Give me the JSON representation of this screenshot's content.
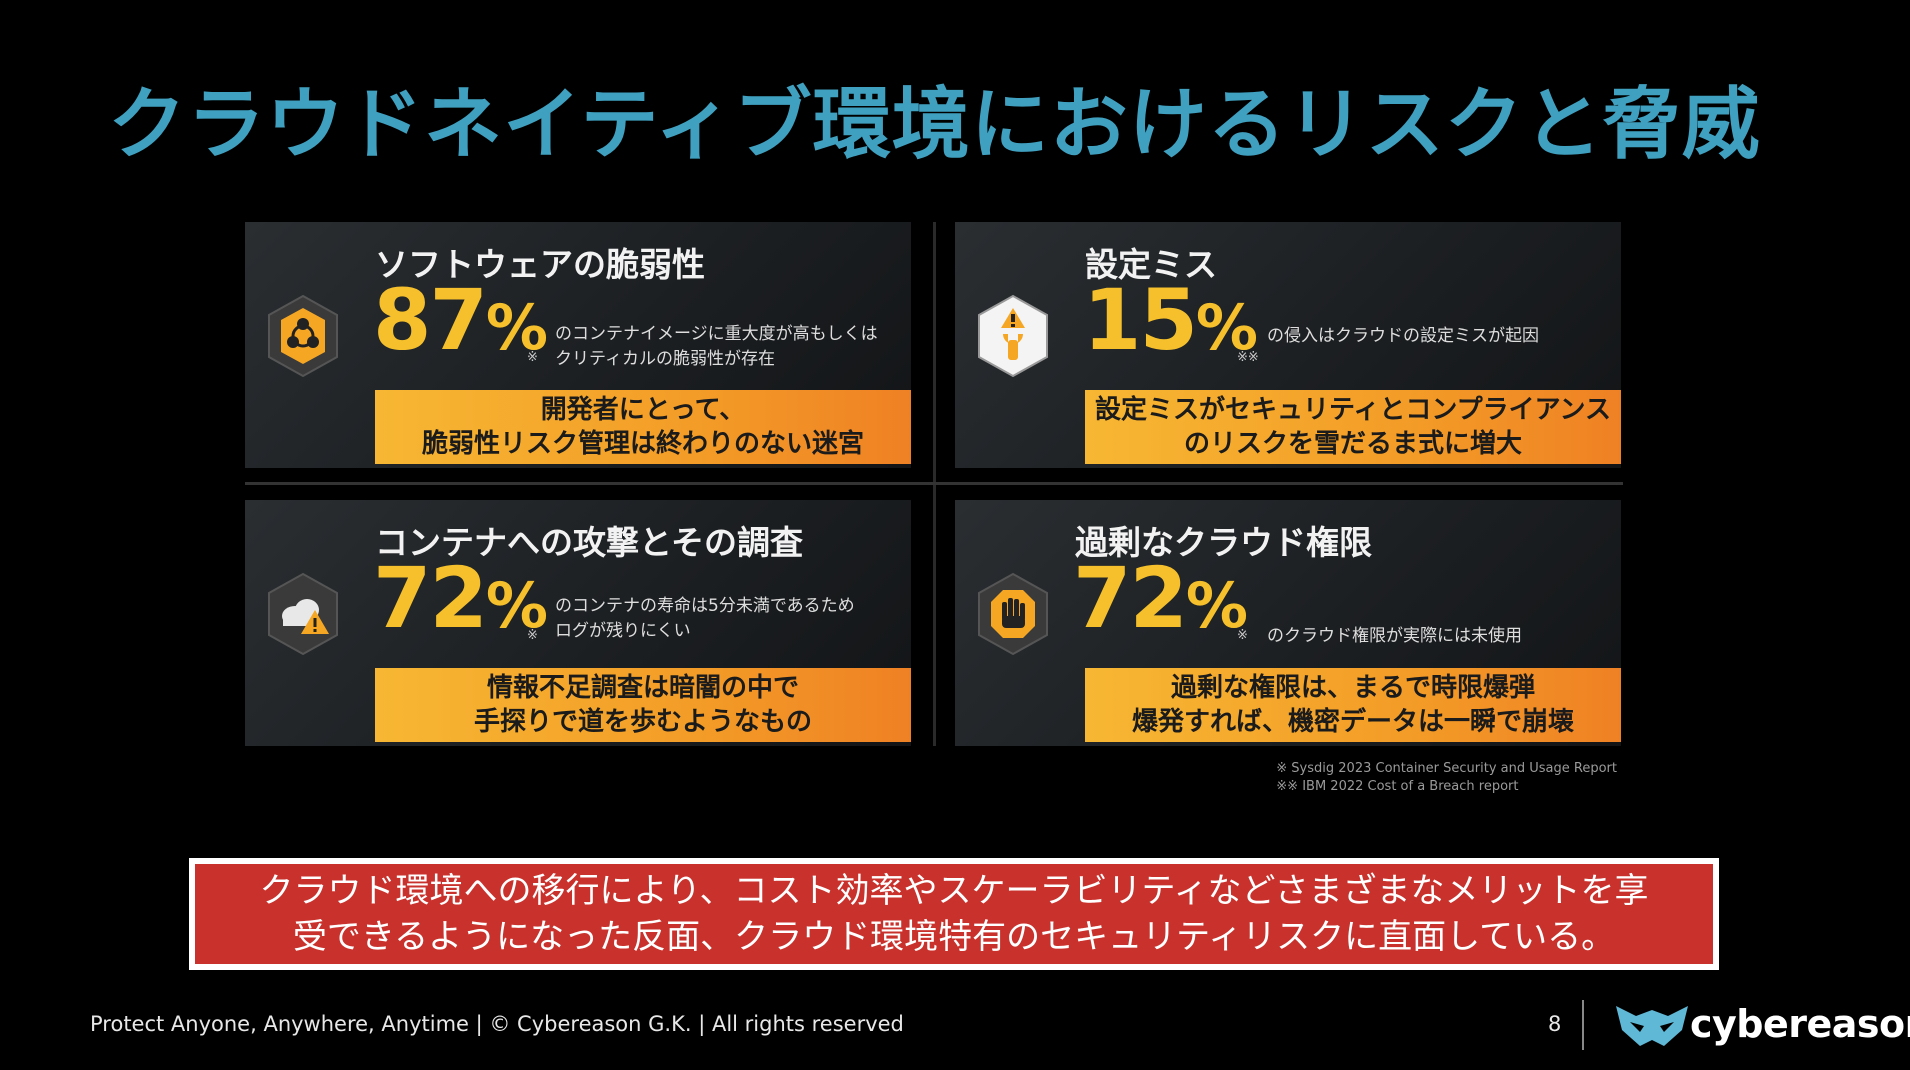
{
  "title": "クラウドネイティブ環境におけるリスクと脅威",
  "cards": [
    {
      "title": "ソフトウェアの脆弱性",
      "icon": "biohazard-icon",
      "value": "87",
      "percent": "%",
      "note": "※",
      "desc1": "のコンテナイメージに重大度が高もしくは",
      "desc2": "クリティカルの脆弱性が存在",
      "banner1": "開発者にとって、",
      "banner2": "脆弱性リスク管理は終わりのない迷宮"
    },
    {
      "title": "設定ミス",
      "icon": "wrench-warning-icon",
      "value": "15",
      "percent": "%",
      "note": "※※",
      "desc1": "の侵入はクラウドの設定ミスが起因",
      "desc2": "",
      "banner1": "設定ミスがセキュリティとコンプライアンス",
      "banner2": "のリスクを雪だるま式に増大"
    },
    {
      "title": "コンテナへの攻撃とその調査",
      "icon": "cloud-warning-icon",
      "value": "72",
      "percent": "%",
      "note": "※",
      "desc1": "のコンテナの寿命は5分未満であるため",
      "desc2": "ログが残りにくい",
      "banner1": "情報不足調査は暗闇の中で",
      "banner2": "手探りで道を歩むようなもの"
    },
    {
      "title": "過剰なクラウド権限",
      "icon": "stop-hand-icon",
      "value": "72",
      "percent": "%",
      "note": "※",
      "desc1": "のクラウド権限が実際には未使用",
      "desc2": "",
      "banner1": "過剰な権限は、まるで時限爆弾",
      "banner2": "爆発すれば、機密データは一瞬で崩壊"
    }
  ],
  "sources": [
    "※ Sysdig 2023 Container Security and Usage Report",
    "※※ IBM 2022 Cost of a Breach report"
  ],
  "callout": {
    "line1": "クラウド環境への移行により、コスト効率やスケーラビリティなどさまざまなメリットを享",
    "line2": "受できるようになった反面、クラウド環境特有のセキュリティリスクに直面している。"
  },
  "footer": {
    "text": "Protect Anyone, Anywhere, Anytime | © Cybereason G.K. | All rights reserved",
    "page": "8",
    "logo_text": "cybereason"
  },
  "colors": {
    "title": "#3fa0c0",
    "accent_yellow": "#f5c02b",
    "banner_orange": "#f39c27",
    "callout_red": "#c9312c"
  }
}
